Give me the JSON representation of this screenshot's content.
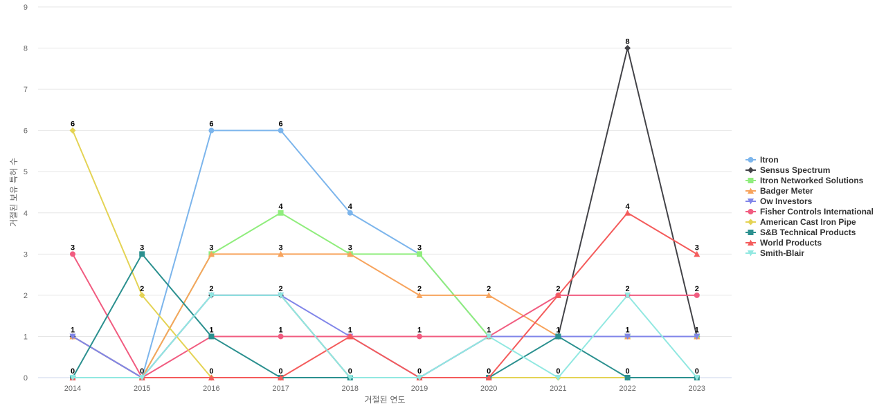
{
  "chart_data": {
    "type": "line",
    "title": "",
    "xlabel": "거절된 연도",
    "ylabel": "거절된 보유 특허 수",
    "x": [
      "2014",
      "2015",
      "2016",
      "2017",
      "2018",
      "2019",
      "2020",
      "2021",
      "2022",
      "2023"
    ],
    "ylim": [
      0,
      9
    ],
    "yticks": [
      "0",
      "1",
      "2",
      "3",
      "4",
      "5",
      "6",
      "7",
      "8",
      "9"
    ],
    "grid": true,
    "legend_position": "right",
    "series": [
      {
        "name": "Itron",
        "color": "#7cb5ec",
        "marker": "circle",
        "values": [
          1,
          0,
          6,
          6,
          4,
          3,
          1,
          1,
          1,
          1
        ]
      },
      {
        "name": "Sensus Spectrum",
        "color": "#434348",
        "marker": "diamond",
        "values": [
          1,
          0,
          2,
          2,
          0,
          0,
          1,
          1,
          8,
          1
        ]
      },
      {
        "name": "Itron Networked Solutions",
        "color": "#90ed7d",
        "marker": "square",
        "values": [
          0,
          0,
          3,
          4,
          3,
          3,
          1,
          1,
          1,
          1
        ]
      },
      {
        "name": "Badger Meter",
        "color": "#f7a35c",
        "marker": "triangle",
        "values": [
          1,
          0,
          3,
          3,
          3,
          2,
          2,
          1,
          1,
          1
        ]
      },
      {
        "name": "Ow Investors",
        "color": "#8085e9",
        "marker": "triangle-down",
        "values": [
          1,
          0,
          2,
          2,
          1,
          0,
          1,
          1,
          1,
          1
        ]
      },
      {
        "name": "Fisher Controls International",
        "color": "#f15c80",
        "marker": "circle",
        "values": [
          3,
          0,
          1,
          1,
          1,
          1,
          1,
          2,
          2,
          2
        ]
      },
      {
        "name": "American Cast Iron Pipe",
        "color": "#e4d354",
        "marker": "diamond",
        "values": [
          6,
          2,
          0,
          0,
          0,
          0,
          0,
          0,
          0,
          0
        ]
      },
      {
        "name": "S&B Technical Products",
        "color": "#2b908f",
        "marker": "square",
        "values": [
          0,
          3,
          1,
          0,
          0,
          0,
          0,
          1,
          0,
          0
        ]
      },
      {
        "name": "World Products",
        "color": "#f45b5b",
        "marker": "triangle",
        "values": [
          0,
          0,
          0,
          0,
          1,
          0,
          0,
          2,
          4,
          3
        ]
      },
      {
        "name": "Smith-Blair",
        "color": "#91e8e1",
        "marker": "triangle-down",
        "values": [
          0,
          0,
          2,
          2,
          0,
          0,
          1,
          0,
          2,
          0
        ]
      }
    ],
    "data_labels": [
      {
        "x": "2014",
        "values": [
          "6",
          "3",
          "1",
          "0"
        ]
      },
      {
        "x": "2015",
        "values": [
          "3",
          "2",
          "0"
        ]
      },
      {
        "x": "2016",
        "values": [
          "6",
          "3",
          "2",
          "1",
          "0"
        ]
      },
      {
        "x": "2017",
        "values": [
          "6",
          "4",
          "3",
          "2",
          "1",
          "0"
        ]
      },
      {
        "x": "2018",
        "values": [
          "4",
          "3",
          "1",
          "0"
        ]
      },
      {
        "x": "2019",
        "values": [
          "3",
          "2",
          "1",
          "0"
        ]
      },
      {
        "x": "2020",
        "values": [
          "2",
          "1",
          "0"
        ]
      },
      {
        "x": "2021",
        "values": [
          "2",
          "1",
          "0"
        ]
      },
      {
        "x": "2022",
        "values": [
          "8",
          "4",
          "2",
          "1",
          "0"
        ]
      },
      {
        "x": "2023",
        "values": [
          "3",
          "2",
          "1",
          "0"
        ]
      }
    ]
  }
}
